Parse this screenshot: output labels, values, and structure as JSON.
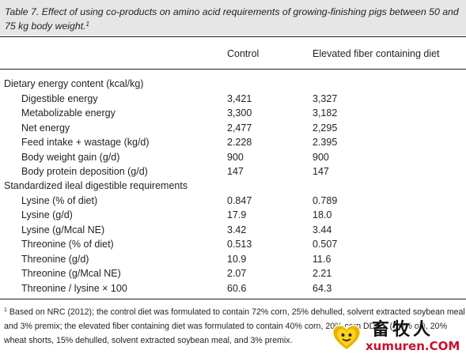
{
  "caption": {
    "text": "Table 7. Effect of using co-products on amino acid requirements of growing-finishing pigs between 50 and 75 kg body weight.",
    "footnote_marker": "1"
  },
  "table": {
    "columns": [
      "Control",
      "Elevated fiber containing diet"
    ],
    "sections": [
      {
        "title": "Dietary energy content (kcal/kg)",
        "rows": [
          {
            "label": "Digestible energy",
            "control": "3,421",
            "elevated": "3,327"
          },
          {
            "label": "Metabolizable energy",
            "control": "3,300",
            "elevated": "3,182"
          },
          {
            "label": "Net energy",
            "control": "2,477",
            "elevated": "2,295"
          },
          {
            "label": "Feed intake + wastage (kg/d)",
            "control": "2.228",
            "elevated": "2.395"
          },
          {
            "label": "Body weight gain (g/d)",
            "control": "900",
            "elevated": "900"
          },
          {
            "label": "Body protein deposition (g/d)",
            "control": "147",
            "elevated": "147"
          }
        ]
      },
      {
        "title": "Standardized ileal digestible requirements",
        "rows": [
          {
            "label": "Lysine (% of diet)",
            "control": "0.847",
            "elevated": "0.789"
          },
          {
            "label": "Lysine (g/d)",
            "control": "17.9",
            "elevated": "18.0"
          },
          {
            "label": "Lysine (g/Mcal NE)",
            "control": "3.42",
            "elevated": "3.44"
          },
          {
            "label": "Threonine (% of diet)",
            "control": "0.513",
            "elevated": "0.507"
          },
          {
            "label": "Threonine (g/d)",
            "control": "10.9",
            "elevated": "11.6"
          },
          {
            "label": "Threonine (g/Mcal NE)",
            "control": "2.07",
            "elevated": "2.21"
          },
          {
            "label": "Threonine / lysine × 100",
            "control": "60.6",
            "elevated": "64.3"
          }
        ]
      }
    ]
  },
  "footnote": {
    "marker": "1",
    "text": "Based on NRC (2012); the control diet was formulated to contain 72% corn, 25% dehulled, solvent extracted soybean meal and 3% premix; the elevated fiber containing diet was formulated to contain 40% corn, 20% corn DDGS (6-9% oil), 20% wheat shorts, 15% dehulled, solvent extracted soybean meal, and 3% premix."
  },
  "watermark": {
    "chinese": "畜牧人",
    "domain": "xumuren.COM",
    "colors": {
      "heart_outer": "#e8b400",
      "heart_inner": "#ffd21f",
      "domain_text": "#c8102e"
    }
  }
}
